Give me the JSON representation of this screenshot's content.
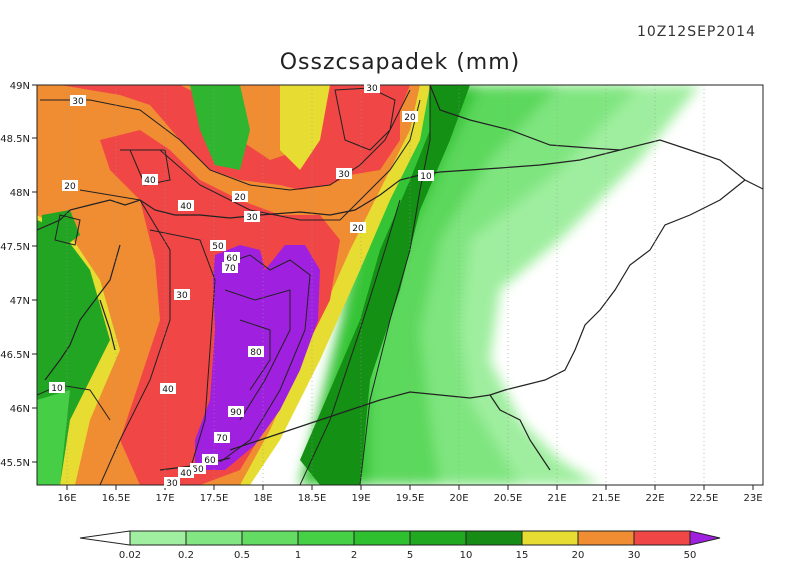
{
  "header": {
    "title": "Osszcsapadek (mm)",
    "timestamp": "10Z12SEP2014"
  },
  "map": {
    "lon_ticks": [
      "16E",
      "16.5E",
      "17E",
      "17.5E",
      "18E",
      "18.5E",
      "19E",
      "19.5E",
      "20E",
      "20.5E",
      "21E",
      "21.5E",
      "22E",
      "22.5E",
      "23E"
    ],
    "lat_ticks": [
      "49N",
      "48.5N",
      "48N",
      "47.5N",
      "47N",
      "46.5N",
      "46N",
      "45.5N"
    ],
    "contour_labels": [
      "30",
      "30",
      "20",
      "20",
      "40",
      "20",
      "30",
      "10",
      "40",
      "30",
      "20",
      "50",
      "60",
      "70",
      "30",
      "80",
      "10",
      "40",
      "90",
      "70",
      "60",
      "50",
      "40",
      "30"
    ]
  },
  "colorbar": {
    "labels": [
      "0.02",
      "0.2",
      "0.5",
      "1",
      "2",
      "5",
      "10",
      "15",
      "20",
      "30",
      "50"
    ],
    "colors": [
      "#c8f5c8",
      "#a0eea0",
      "#82e682",
      "#64dc64",
      "#46d046",
      "#2fc02f",
      "#20a820",
      "#168c16",
      "#e6dc32",
      "#f08c32",
      "#f04646",
      "#a020e0"
    ]
  }
}
